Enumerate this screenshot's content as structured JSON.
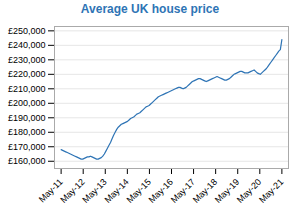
{
  "chart_data": {
    "type": "line",
    "title": "Average UK house price",
    "color": "#2e74b5",
    "x": [
      0,
      0.0699,
      0.1399,
      0.2098,
      0.2797,
      0.3497,
      0.4196,
      0.4895,
      0.5594,
      0.6294,
      0.6993,
      0.7692,
      0.8392,
      0.9091,
      0.979,
      1.049,
      1.1189,
      1.1888,
      1.2587,
      1.3287,
      1.3986,
      1.4685,
      1.5385,
      1.6084,
      1.6783,
      1.7483,
      1.8182,
      1.8881,
      1.958,
      2.028,
      2.0979,
      2.1678,
      2.2378,
      2.3077,
      2.3776,
      2.4476,
      2.5175,
      2.5874,
      2.6573,
      2.7273,
      2.7972,
      2.8671,
      2.9371,
      3.007,
      3.0769,
      3.1469,
      3.2168,
      3.2867,
      3.3566,
      3.4266,
      3.4965,
      3.5664,
      3.6364,
      3.7063,
      3.7762,
      3.8462,
      3.9161,
      3.986,
      4.0559,
      4.1259,
      4.1958,
      4.2657,
      4.3357,
      4.4056,
      4.4755,
      4.5455,
      4.6154,
      4.6853,
      4.7552,
      4.8252,
      4.8951,
      4.965,
      5.035,
      5.1049,
      5.1748,
      5.2448,
      5.3147,
      5.3846,
      5.4545,
      5.5245,
      5.5944,
      5.6643,
      5.7343,
      5.8042,
      5.8741,
      5.9441,
      6.014,
      6.0839,
      6.1538,
      6.2238,
      6.2937,
      6.3636,
      6.4336,
      6.5035,
      6.5734,
      6.6434,
      6.7133,
      6.7832,
      6.8531,
      6.9231,
      6.993,
      7.0629,
      7.1329,
      7.2028,
      7.2727,
      7.3427,
      7.4126,
      7.4825,
      7.5524,
      7.6224,
      7.6923,
      7.7622,
      7.8322,
      7.9021,
      7.972,
      8.042,
      8.1119,
      8.1818,
      8.2517,
      8.3217,
      8.3916,
      8.4615,
      8.5315,
      8.6014,
      8.6713,
      8.7413,
      8.8112,
      8.8811,
      8.951,
      9.021,
      9.0909,
      9.1608,
      9.2308,
      9.3007,
      9.3706,
      9.4406,
      9.5105,
      9.5804,
      9.6503,
      9.7203,
      9.7902,
      9.8601,
      9.9301,
      10
    ],
    "values": [
      168000,
      167500,
      167000,
      166500,
      166000,
      165500,
      165000,
      164500,
      164000,
      163500,
      163000,
      162500,
      162000,
      161500,
      161500,
      162000,
      162500,
      163000,
      163000,
      163500,
      163000,
      162500,
      162000,
      161500,
      161500,
      162000,
      162500,
      163500,
      165000,
      167000,
      169000,
      171000,
      173000,
      175500,
      178000,
      180000,
      182000,
      183500,
      184500,
      185500,
      186000,
      186500,
      187000,
      187500,
      188500,
      189500,
      190000,
      190500,
      191500,
      192500,
      193000,
      193500,
      194500,
      195500,
      196500,
      197500,
      198000,
      198500,
      199500,
      200500,
      201500,
      202500,
      203500,
      204500,
      205000,
      205500,
      206000,
      206500,
      207000,
      207500,
      208000,
      208500,
      209000,
      209500,
      210000,
      210500,
      211000,
      211000,
      210500,
      210000,
      210500,
      211000,
      212000,
      213000,
      214000,
      215000,
      215500,
      216000,
      216500,
      217000,
      217000,
      216500,
      216000,
      215500,
      215000,
      215500,
      216000,
      216500,
      217000,
      217500,
      218000,
      218500,
      218000,
      217500,
      217000,
      216500,
      216000,
      216000,
      216500,
      217000,
      218000,
      219000,
      220000,
      220500,
      221000,
      221500,
      222000,
      222000,
      221500,
      221000,
      221000,
      221000,
      221500,
      222000,
      222500,
      223000,
      222000,
      221000,
      220500,
      220000,
      221000,
      222000,
      223000,
      224000,
      225500,
      227000,
      228500,
      230000,
      231500,
      233000,
      234500,
      236000,
      237000,
      244000
    ],
    "xlim": [
      -0.3,
      10.3
    ],
    "xticks": [
      {
        "value": 0,
        "label": "May-11"
      },
      {
        "value": 1,
        "label": "May-12"
      },
      {
        "value": 2,
        "label": "May-13"
      },
      {
        "value": 3,
        "label": "May-14"
      },
      {
        "value": 4,
        "label": "May-15"
      },
      {
        "value": 5,
        "label": "May-16"
      },
      {
        "value": 6,
        "label": "May-17"
      },
      {
        "value": 7,
        "label": "May-18"
      },
      {
        "value": 8,
        "label": "May-19"
      },
      {
        "value": 9,
        "label": "May-20"
      },
      {
        "value": 10,
        "label": "May-21"
      }
    ],
    "ylim": [
      155000,
      253000
    ],
    "yticks": [
      {
        "value": 160000,
        "label": "£160,000"
      },
      {
        "value": 170000,
        "label": "£170,000"
      },
      {
        "value": 180000,
        "label": "£180,000"
      },
      {
        "value": 190000,
        "label": "£190,000"
      },
      {
        "value": 200000,
        "label": "£200,000"
      },
      {
        "value": 210000,
        "label": "£210,000"
      },
      {
        "value": 220000,
        "label": "£220,000"
      },
      {
        "value": 230000,
        "label": "£230,000"
      },
      {
        "value": 240000,
        "label": "£240,000"
      },
      {
        "value": 250000,
        "label": "£250,000"
      }
    ],
    "grid": true
  }
}
